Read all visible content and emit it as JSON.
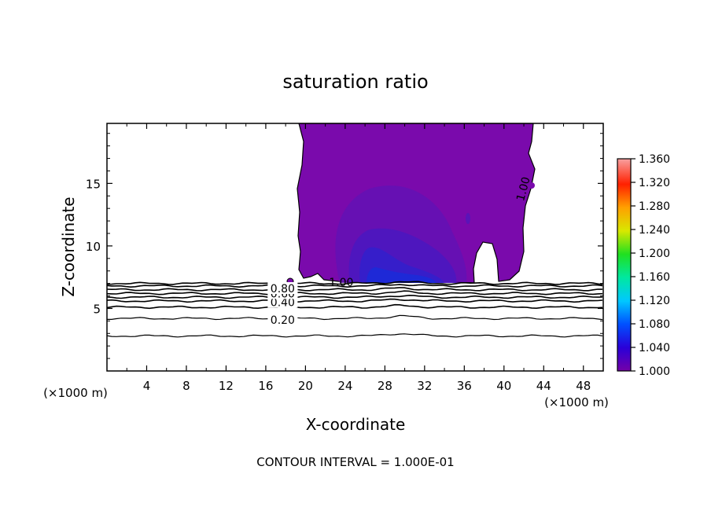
{
  "chart_data": {
    "type": "contour",
    "title": "saturation ratio",
    "xlabel": "X-coordinate",
    "ylabel": "Z-coordinate",
    "x_unit": "(×1000 m)",
    "y_unit": "(×1000 m)",
    "xlim": [
      0,
      50
    ],
    "ylim": [
      0,
      19.8
    ],
    "x_ticks": [
      4,
      8,
      12,
      16,
      20,
      24,
      28,
      32,
      36,
      40,
      44,
      48
    ],
    "y_ticks": [
      5,
      10,
      15
    ],
    "footer": "CONTOUR INTERVAL = 1.000E-01",
    "colorbar": {
      "min": 1.0,
      "max": 1.36,
      "ticks": [
        "1.360",
        "1.320",
        "1.280",
        "1.240",
        "1.200",
        "1.160",
        "1.120",
        "1.080",
        "1.040",
        "1.000"
      ]
    },
    "contour_labels": [
      {
        "text": "0.20",
        "x": 17.7,
        "z": 4.1
      },
      {
        "text": "0.40",
        "x": 17.7,
        "z": 5.5
      },
      {
        "text": "0.60",
        "x": 17.7,
        "z": 6.2
      },
      {
        "text": "0.80",
        "x": 17.7,
        "z": 6.6
      },
      {
        "text": "1.00",
        "x": 23.6,
        "z": 7.1
      },
      {
        "text": "1.00",
        "x": 42.3,
        "z": 14.8
      }
    ],
    "contour_lines_z": [
      2.8,
      4.2,
      5.1,
      5.6,
      5.9,
      6.2,
      6.5,
      6.8,
      7.0
    ],
    "supersaturated_region": {
      "x_range": [
        19.0,
        42.5
      ],
      "z_range": [
        6.9,
        19.8
      ],
      "gap_x_range": [
        36.9,
        39.7
      ],
      "gap_top_z": 10.3,
      "core": {
        "x": 29.8,
        "z": 8.0,
        "max_ratio": 1.04
      }
    }
  }
}
